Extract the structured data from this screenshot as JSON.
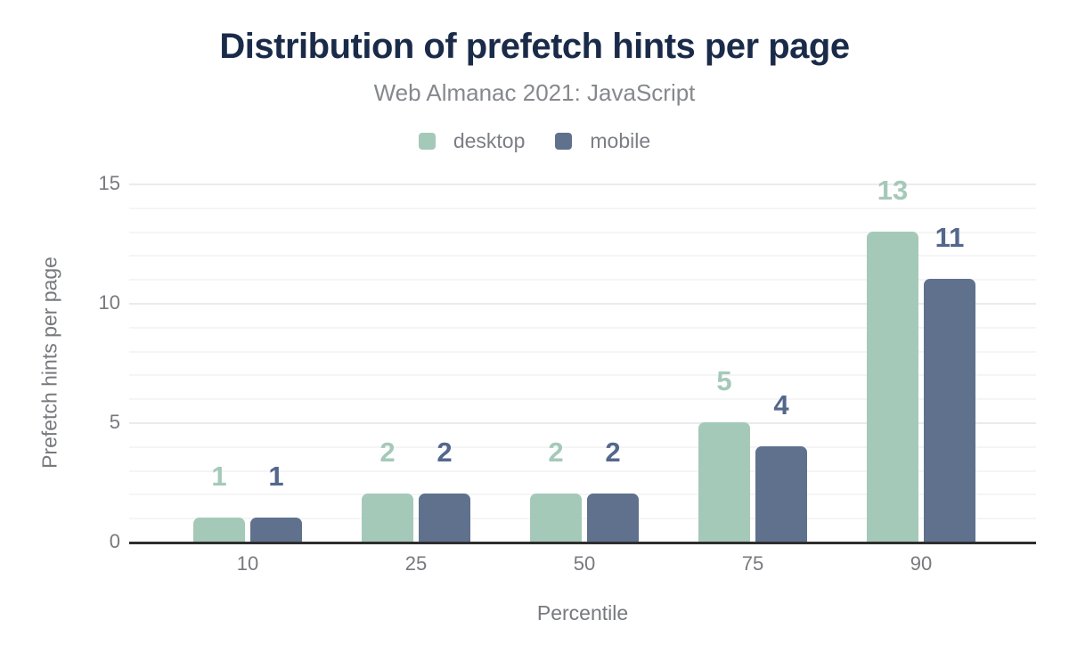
{
  "title": "Distribution of prefetch hints per page",
  "subtitle": "Web Almanac 2021: JavaScript",
  "legend": [
    {
      "label": "desktop",
      "color": "#a5c9b8"
    },
    {
      "label": "mobile",
      "color": "#5f718d"
    }
  ],
  "colors": {
    "title_navy": "#1a2b49",
    "desktop_green": "#a5c9b8",
    "mobile_blue": "#5f718d",
    "mobile_value_label": "#54678c",
    "axis_line": "#2e2e2e",
    "text_gray": "#77797e"
  },
  "chart_data": {
    "type": "bar",
    "title": "Distribution of prefetch hints per page",
    "subtitle": "Web Almanac 2021: JavaScript",
    "categories": [
      "10",
      "25",
      "50",
      "75",
      "90"
    ],
    "series": [
      {
        "name": "desktop",
        "color": "#a5c9b8",
        "label_color": "#a5c9b8",
        "values": [
          1,
          2,
          2,
          5,
          13
        ]
      },
      {
        "name": "mobile",
        "color": "#5f718d",
        "label_color": "#54678c",
        "values": [
          1,
          2,
          2,
          4,
          11
        ]
      }
    ],
    "xlabel": "Percentile",
    "ylabel": "Prefetch hints per page",
    "ylim": [
      0,
      15
    ],
    "yticks": [
      0,
      5,
      10,
      15
    ],
    "grid": "horizontal, minor every 1 unit, major every 5 units",
    "legend_position": "top",
    "bar_value_labels": true
  }
}
